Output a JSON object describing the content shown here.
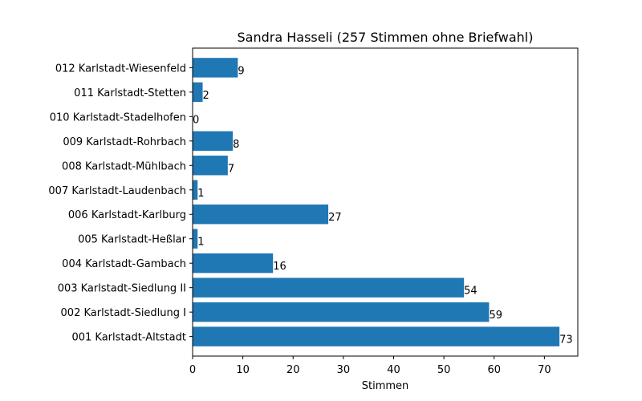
{
  "chart_data": {
    "type": "bar",
    "orientation": "horizontal",
    "title": "Sandra Hasseli (257 Stimmen ohne Briefwahl)",
    "xlabel": "Stimmen",
    "ylabel": "",
    "xlim": [
      0,
      76.65
    ],
    "xticks": [
      0,
      10,
      20,
      30,
      40,
      50,
      60,
      70
    ],
    "grid": false,
    "bar_color": "#1f77b4",
    "categories": [
      "001 Karlstadt-Altstadt",
      "002 Karlstadt-Siedlung I",
      "003 Karlstadt-Siedlung II",
      "004 Karlstadt-Gambach",
      "005 Karlstadt-Heßlar",
      "006 Karlstadt-Karlburg",
      "007 Karlstadt-Laudenbach",
      "008 Karlstadt-Mühlbach",
      "009 Karlstadt-Rohrbach",
      "010 Karlstadt-Stadelhofen",
      "011 Karlstadt-Stetten",
      "012 Karlstadt-Wiesenfeld"
    ],
    "values": [
      73,
      59,
      54,
      16,
      1,
      27,
      1,
      7,
      8,
      0,
      2,
      9
    ]
  }
}
